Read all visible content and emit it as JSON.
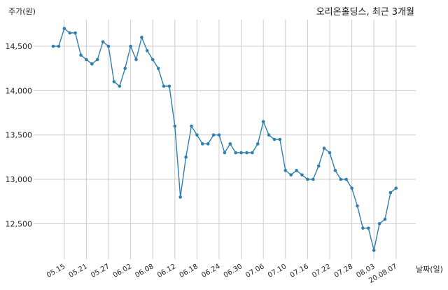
{
  "chart_data": {
    "type": "line",
    "title": "오리온홀딩스, 최근 3개월",
    "xlabel": "날짜(일)",
    "ylabel": "주가(원)",
    "ylim": [
      12100,
      14800
    ],
    "yticks": [
      12500,
      13000,
      13500,
      14000,
      14500
    ],
    "ytick_labels": [
      "12,500",
      "13,000",
      "13,500",
      "14,000",
      "14,500"
    ],
    "xtick_labels": [
      "05.15",
      "05.21",
      "05.27",
      "06.02",
      "06.08",
      "06.12",
      "06.18",
      "06.24",
      "06.30",
      "07.06",
      "07.10",
      "07.16",
      "07.22",
      "07.28",
      "08.03",
      "20.08.07"
    ],
    "grid": true,
    "color": "#2e7fb0",
    "series": [
      {
        "values": [
          14500,
          14500,
          14700,
          14650,
          14650,
          14400,
          14350,
          14300,
          14350,
          14550,
          14500,
          14100,
          14050,
          14250,
          14500,
          14350,
          14600,
          14450,
          14350,
          14250,
          14050,
          14050,
          13600,
          12800,
          13250,
          13600,
          13500,
          13400,
          13400,
          13500,
          13500,
          13300,
          13400,
          13300,
          13300,
          13300,
          13300,
          13400,
          13650,
          13500,
          13450,
          13450,
          13100,
          13050,
          13100,
          13050,
          13000,
          13000,
          13150,
          13350,
          13300,
          13100,
          13000,
          13000,
          12900,
          12700,
          12450,
          12450,
          12200,
          12500,
          12550,
          12850,
          12900
        ]
      }
    ]
  }
}
